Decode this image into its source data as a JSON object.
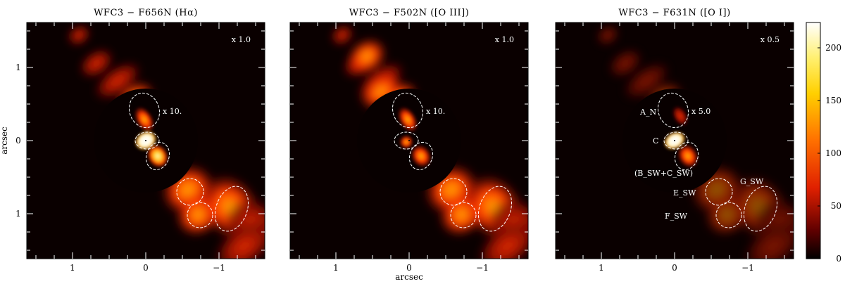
{
  "chart_data": {
    "type": "heatmap",
    "panels": [
      {
        "title": "WFC3 − F656N (Hα)",
        "outer_scale": "x 1.0",
        "inner_scale": "x 10.",
        "region_labels": []
      },
      {
        "title": "WFC3 − F502N ([O III])",
        "outer_scale": "x 1.0",
        "inner_scale": "x 10.",
        "region_labels": []
      },
      {
        "title": "WFC3 − F631N ([O I])",
        "outer_scale": "x 0.5",
        "inner_scale": "x 5.0",
        "region_labels": [
          "A_N",
          "C",
          "(B_SW+C_SW)",
          "E_SW",
          "F_SW",
          "G_SW"
        ]
      }
    ],
    "xlabel": "arcsec",
    "ylabel": "arcsec",
    "x_ticks": [
      "1",
      "0",
      "−1"
    ],
    "y_ticks": [
      "1",
      "0",
      "1"
    ],
    "xlim": [
      1.6,
      -1.6
    ],
    "ylim": [
      -1.6,
      1.6
    ],
    "colorbar": {
      "ticks": [
        "0",
        "50",
        "100",
        "150",
        "200"
      ],
      "range": [
        0,
        224
      ],
      "colormap": "heat"
    },
    "colors": {
      "background": "#000000",
      "ellipse": "#ffffff"
    }
  }
}
